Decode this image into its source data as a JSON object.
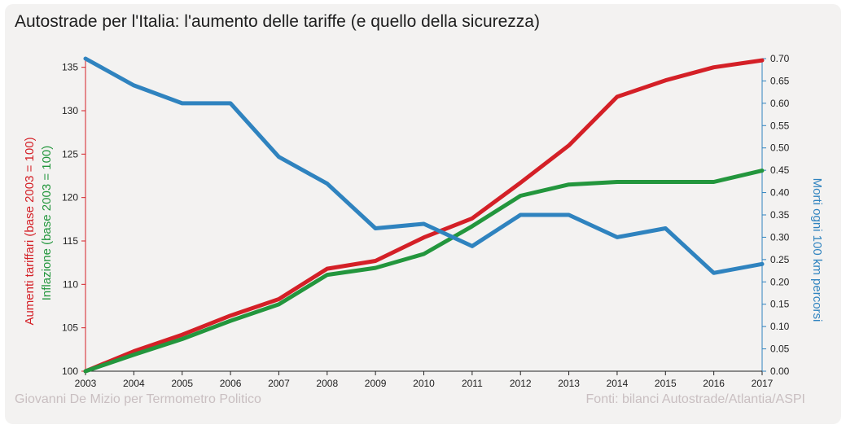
{
  "title": "Autostrade per l'Italia: l'aumento delle tariffe (e quello della sicurezza)",
  "footer": {
    "author": "Giovanni De Mizio per Termometro Politico",
    "sources": "Fonti: bilanci Autostrade/Atlantia/ASPI"
  },
  "colors": {
    "tariffe": "#d42027",
    "inflazione": "#23963d",
    "morti": "#2f83bf",
    "background": "#f3f2f1"
  },
  "chart_data": {
    "type": "line",
    "x": [
      2003,
      2004,
      2005,
      2006,
      2007,
      2008,
      2009,
      2010,
      2011,
      2012,
      2013,
      2014,
      2015,
      2016,
      2017
    ],
    "series": [
      {
        "name": "Aumenti tariffari (base 2003 = 100)",
        "axis": "left",
        "values": [
          100,
          102.3,
          104.2,
          106.4,
          108.3,
          111.8,
          112.7,
          115.4,
          117.6,
          121.7,
          126.0,
          131.6,
          133.5,
          135.0,
          135.8
        ]
      },
      {
        "name": "Inflazione (base 2003 = 100)",
        "axis": "left",
        "values": [
          100,
          101.9,
          103.7,
          105.8,
          107.7,
          111.1,
          111.9,
          113.5,
          116.7,
          120.2,
          121.5,
          121.8,
          121.8,
          121.8,
          123.1
        ]
      },
      {
        "name": "Morti ogni 100 km percorsi",
        "axis": "right",
        "values": [
          0.7,
          0.64,
          0.6,
          0.6,
          0.48,
          0.42,
          0.32,
          0.33,
          0.28,
          0.35,
          0.35,
          0.3,
          0.32,
          0.22,
          0.24
        ]
      }
    ],
    "ylabel_left_1": "Aumenti tariffari (base 2003 = 100)",
    "ylabel_left_2": "Inflazione (base 2003 = 100)",
    "ylabel_right": "Morti ogni 100 km percorsi",
    "ylim_left": [
      100,
      136
    ],
    "yticks_left": [
      "100",
      "105",
      "110",
      "115",
      "120",
      "125",
      "130",
      "135"
    ],
    "ylim_right": [
      0,
      0.7
    ],
    "yticks_right": [
      "0.00",
      "0.05",
      "0.10",
      "0.15",
      "0.20",
      "0.25",
      "0.30",
      "0.35",
      "0.40",
      "0.45",
      "0.50",
      "0.55",
      "0.60",
      "0.65",
      "0.70"
    ],
    "grid": false,
    "legend": "none"
  }
}
